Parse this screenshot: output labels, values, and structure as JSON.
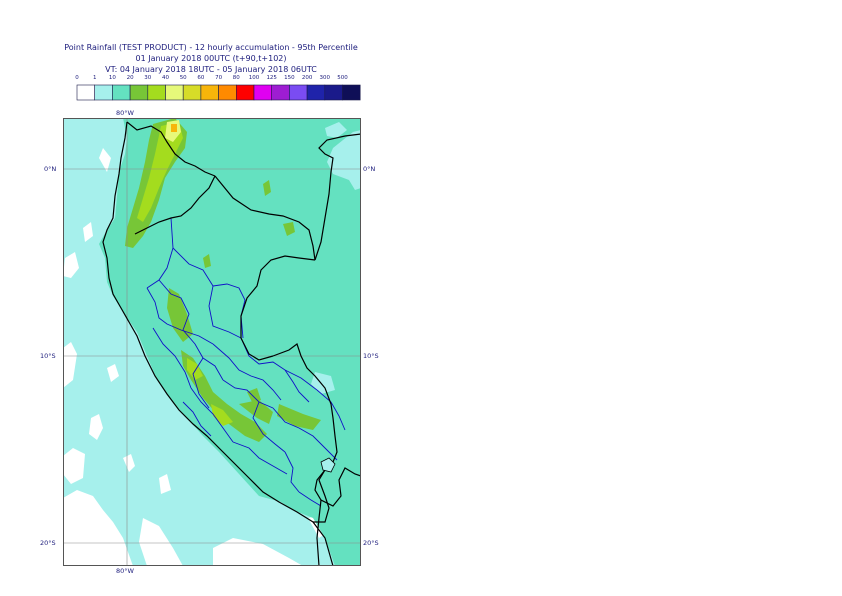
{
  "header": {
    "title1": "Point Rainfall (TEST PRODUCT) - 12 hourly accumulation - 95th Percentile",
    "title2": "01 January 2018 00UTC (t+90,t+102)",
    "title3": "VT: 04 January 2018 18UTC - 05 January 2018 06UTC"
  },
  "legend": {
    "thresholds": [
      "0",
      "1",
      "10",
      "20",
      "30",
      "40",
      "50",
      "60",
      "70",
      "80",
      "100",
      "125",
      "150",
      "200",
      "300",
      "500"
    ],
    "colors": [
      "#ffffff",
      "#a6f0ec",
      "#64e1c0",
      "#77c637",
      "#a4dc1e",
      "#e6f97a",
      "#d7dc28",
      "#f7b50a",
      "#ff8a00",
      "#fe0000",
      "#e000f1",
      "#9e1dd2",
      "#7a4cf2",
      "#1f23aa",
      "#1a1a8a",
      "#0f0f57"
    ]
  },
  "axes": {
    "lon_top": "80°W",
    "lon_bottom": "80°W",
    "lat_left": [
      "0°N",
      "10°S",
      "20°S"
    ],
    "lat_right": [
      "0°N",
      "10°S",
      "20°S"
    ]
  },
  "map_colors": {
    "ocean_light": "#a6f0ec",
    "land_base": "#64e1c0",
    "heavy": "#77c637",
    "heavier": "#a4dc1e",
    "peak": "#e6f97a",
    "peak2": "#f7b50a",
    "border": "#000000",
    "region": "#1010c8",
    "graticule": "#8a8a8a"
  }
}
